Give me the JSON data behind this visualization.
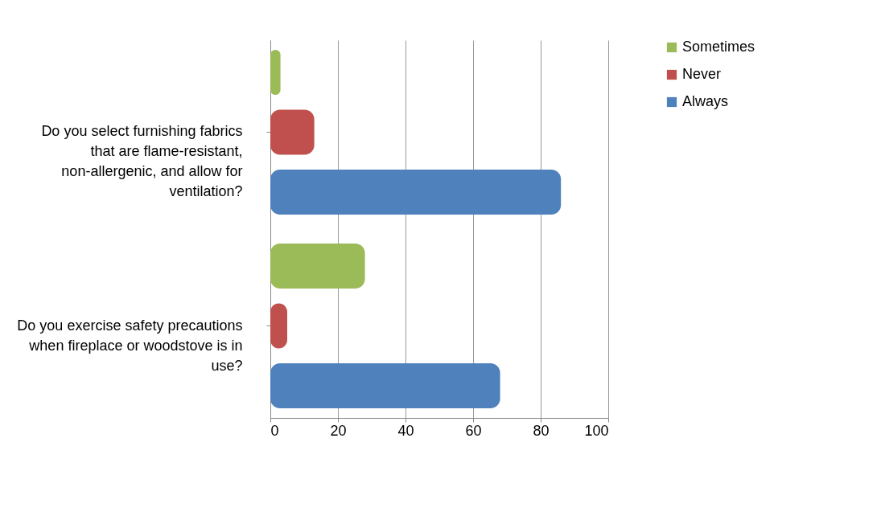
{
  "chart_data": {
    "type": "bar",
    "orientation": "horizontal",
    "categories": [
      "Do you select furnishing fabrics that are flame-resistant, non-allergenic, and allow for ventilation?",
      "Do you exercise safety precautions when fireplace or woodstove is in use?"
    ],
    "series": [
      {
        "name": "Sometimes",
        "color": "#9bbb59",
        "values": [
          3,
          28
        ]
      },
      {
        "name": "Never",
        "color": "#c0504d",
        "values": [
          13,
          5
        ]
      },
      {
        "name": "Always",
        "color": "#4f81bd",
        "values": [
          86,
          68
        ]
      }
    ],
    "xlim": [
      0,
      100
    ],
    "xticks": [
      0,
      20,
      40,
      60,
      80,
      100
    ],
    "grid": "x",
    "legend": "right"
  }
}
